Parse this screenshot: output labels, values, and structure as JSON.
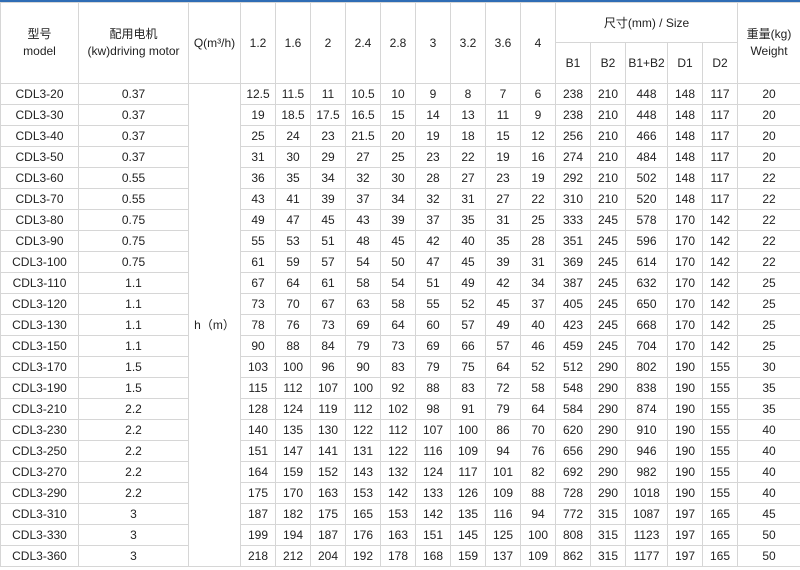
{
  "header": {
    "model_cn": "型号",
    "model_en": "model",
    "motor_cn": "配用电机",
    "motor_en": "(kw)driving motor",
    "flow_label": "Q(m³/h)",
    "flows": [
      "1.2",
      "1.6",
      "2",
      "2.4",
      "2.8",
      "3",
      "3.2",
      "3.6",
      "4"
    ],
    "size_label": "尺寸(mm) / Size",
    "size_cols": [
      "B1",
      "B2",
      "B1+B2",
      "D1",
      "D2"
    ],
    "weight_cn": "重量(kg)",
    "weight_en": "Weight",
    "head_label": "h（m）"
  },
  "accent_color": "#2f6db5",
  "rows": [
    {
      "model": "CDL3-20",
      "motor": "0.37",
      "heads": [
        "12.5",
        "11.5",
        "11",
        "10.5",
        "10",
        "9",
        "8",
        "7",
        "6"
      ],
      "size": [
        "238",
        "210",
        "448",
        "148",
        "117"
      ],
      "weight": "20"
    },
    {
      "model": "CDL3-30",
      "motor": "0.37",
      "heads": [
        "19",
        "18.5",
        "17.5",
        "16.5",
        "15",
        "14",
        "13",
        "11",
        "9"
      ],
      "size": [
        "238",
        "210",
        "448",
        "148",
        "117"
      ],
      "weight": "20"
    },
    {
      "model": "CDL3-40",
      "motor": "0.37",
      "heads": [
        "25",
        "24",
        "23",
        "21.5",
        "20",
        "19",
        "18",
        "15",
        "12"
      ],
      "size": [
        "256",
        "210",
        "466",
        "148",
        "117"
      ],
      "weight": "20"
    },
    {
      "model": "CDL3-50",
      "motor": "0.37",
      "heads": [
        "31",
        "30",
        "29",
        "27",
        "25",
        "23",
        "22",
        "19",
        "16"
      ],
      "size": [
        "274",
        "210",
        "484",
        "148",
        "117"
      ],
      "weight": "20"
    },
    {
      "model": "CDL3-60",
      "motor": "0.55",
      "heads": [
        "36",
        "35",
        "34",
        "32",
        "30",
        "28",
        "27",
        "23",
        "19"
      ],
      "size": [
        "292",
        "210",
        "502",
        "148",
        "117"
      ],
      "weight": "22"
    },
    {
      "model": "CDL3-70",
      "motor": "0.55",
      "heads": [
        "43",
        "41",
        "39",
        "37",
        "34",
        "32",
        "31",
        "27",
        "22"
      ],
      "size": [
        "310",
        "210",
        "520",
        "148",
        "117"
      ],
      "weight": "22"
    },
    {
      "model": "CDL3-80",
      "motor": "0.75",
      "heads": [
        "49",
        "47",
        "45",
        "43",
        "39",
        "37",
        "35",
        "31",
        "25"
      ],
      "size": [
        "333",
        "245",
        "578",
        "170",
        "142"
      ],
      "weight": "22"
    },
    {
      "model": "CDL3-90",
      "motor": "0.75",
      "heads": [
        "55",
        "53",
        "51",
        "48",
        "45",
        "42",
        "40",
        "35",
        "28"
      ],
      "size": [
        "351",
        "245",
        "596",
        "170",
        "142"
      ],
      "weight": "22"
    },
    {
      "model": "CDL3-100",
      "motor": "0.75",
      "heads": [
        "61",
        "59",
        "57",
        "54",
        "50",
        "47",
        "45",
        "39",
        "31"
      ],
      "size": [
        "369",
        "245",
        "614",
        "170",
        "142"
      ],
      "weight": "22"
    },
    {
      "model": "CDL3-110",
      "motor": "1.1",
      "heads": [
        "67",
        "64",
        "61",
        "58",
        "54",
        "51",
        "49",
        "42",
        "34"
      ],
      "size": [
        "387",
        "245",
        "632",
        "170",
        "142"
      ],
      "weight": "25"
    },
    {
      "model": "CDL3-120",
      "motor": "1.1",
      "heads": [
        "73",
        "70",
        "67",
        "63",
        "58",
        "55",
        "52",
        "45",
        "37"
      ],
      "size": [
        "405",
        "245",
        "650",
        "170",
        "142"
      ],
      "weight": "25"
    },
    {
      "model": "CDL3-130",
      "motor": "1.1",
      "heads": [
        "78",
        "76",
        "73",
        "69",
        "64",
        "60",
        "57",
        "49",
        "40"
      ],
      "size": [
        "423",
        "245",
        "668",
        "170",
        "142"
      ],
      "weight": "25"
    },
    {
      "model": "CDL3-150",
      "motor": "1.1",
      "heads": [
        "90",
        "88",
        "84",
        "79",
        "73",
        "69",
        "66",
        "57",
        "46"
      ],
      "size": [
        "459",
        "245",
        "704",
        "170",
        "142"
      ],
      "weight": "25"
    },
    {
      "model": "CDL3-170",
      "motor": "1.5",
      "heads": [
        "103",
        "100",
        "96",
        "90",
        "83",
        "79",
        "75",
        "64",
        "52"
      ],
      "size": [
        "512",
        "290",
        "802",
        "190",
        "155"
      ],
      "weight": "30"
    },
    {
      "model": "CDL3-190",
      "motor": "1.5",
      "heads": [
        "115",
        "112",
        "107",
        "100",
        "92",
        "88",
        "83",
        "72",
        "58"
      ],
      "size": [
        "548",
        "290",
        "838",
        "190",
        "155"
      ],
      "weight": "35"
    },
    {
      "model": "CDL3-210",
      "motor": "2.2",
      "heads": [
        "128",
        "124",
        "119",
        "112",
        "102",
        "98",
        "91",
        "79",
        "64"
      ],
      "size": [
        "584",
        "290",
        "874",
        "190",
        "155"
      ],
      "weight": "35"
    },
    {
      "model": "CDL3-230",
      "motor": "2.2",
      "heads": [
        "140",
        "135",
        "130",
        "122",
        "112",
        "107",
        "100",
        "86",
        "70"
      ],
      "size": [
        "620",
        "290",
        "910",
        "190",
        "155"
      ],
      "weight": "40"
    },
    {
      "model": "CDL3-250",
      "motor": "2.2",
      "heads": [
        "151",
        "147",
        "141",
        "131",
        "122",
        "116",
        "109",
        "94",
        "76"
      ],
      "size": [
        "656",
        "290",
        "946",
        "190",
        "155"
      ],
      "weight": "40"
    },
    {
      "model": "CDL3-270",
      "motor": "2.2",
      "heads": [
        "164",
        "159",
        "152",
        "143",
        "132",
        "124",
        "117",
        "101",
        "82"
      ],
      "size": [
        "692",
        "290",
        "982",
        "190",
        "155"
      ],
      "weight": "40"
    },
    {
      "model": "CDL3-290",
      "motor": "2.2",
      "heads": [
        "175",
        "170",
        "163",
        "153",
        "142",
        "133",
        "126",
        "109",
        "88"
      ],
      "size": [
        "728",
        "290",
        "1018",
        "190",
        "155"
      ],
      "weight": "40"
    },
    {
      "model": "CDL3-310",
      "motor": "3",
      "heads": [
        "187",
        "182",
        "175",
        "165",
        "153",
        "142",
        "135",
        "116",
        "94"
      ],
      "size": [
        "772",
        "315",
        "1087",
        "197",
        "165"
      ],
      "weight": "45"
    },
    {
      "model": "CDL3-330",
      "motor": "3",
      "heads": [
        "199",
        "194",
        "187",
        "176",
        "163",
        "151",
        "145",
        "125",
        "100"
      ],
      "size": [
        "808",
        "315",
        "1123",
        "197",
        "165"
      ],
      "weight": "50"
    },
    {
      "model": "CDL3-360",
      "motor": "3",
      "heads": [
        "218",
        "212",
        "204",
        "192",
        "178",
        "168",
        "159",
        "137",
        "109"
      ],
      "size": [
        "862",
        "315",
        "1177",
        "197",
        "165"
      ],
      "weight": "50"
    }
  ]
}
